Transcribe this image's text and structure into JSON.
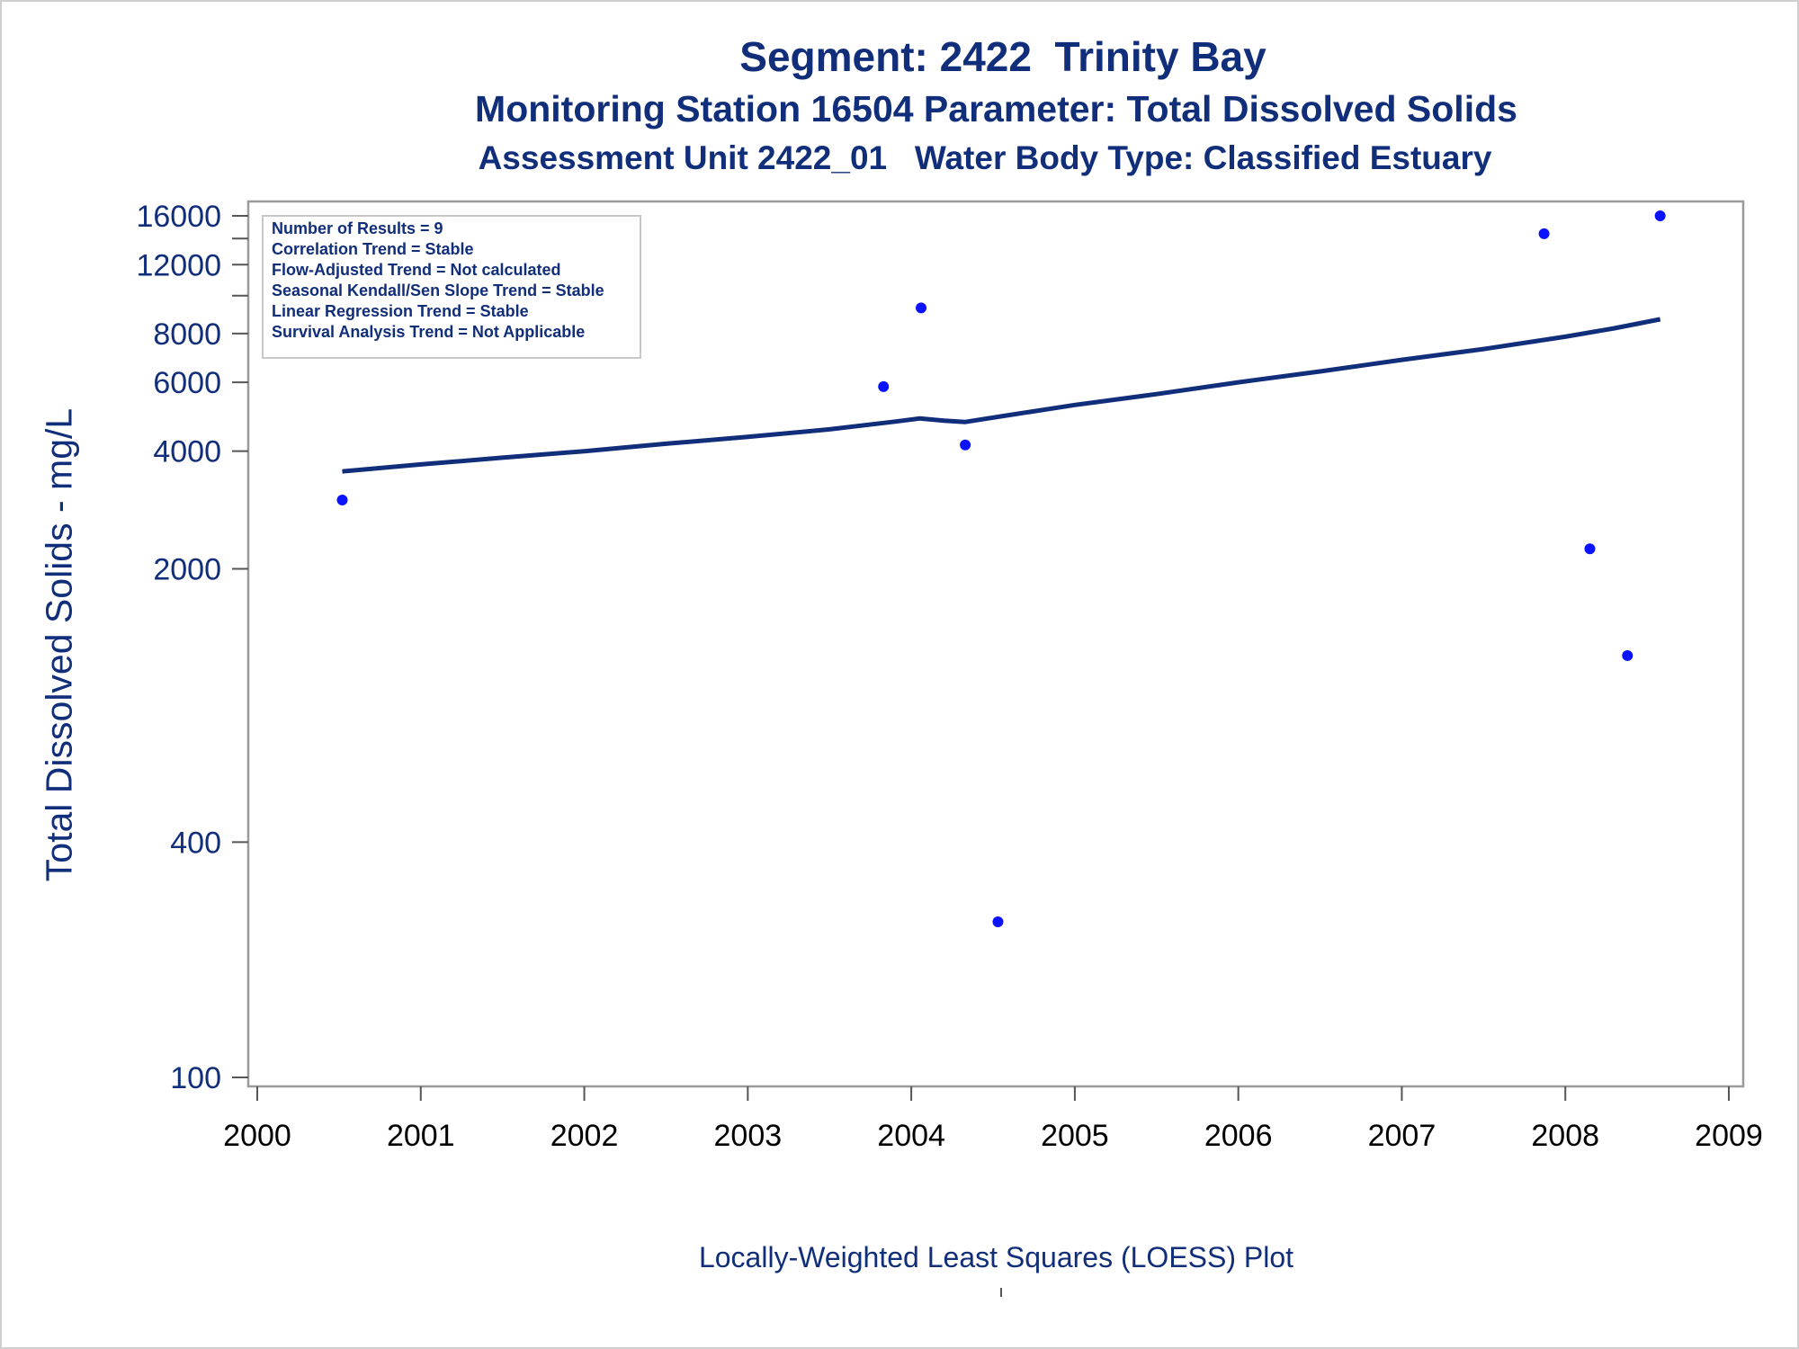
{
  "chart_data": {
    "type": "scatter",
    "title": "Segment: 2422  Trinity Bay",
    "subtitle": "Monitoring Station 16504 Parameter: Total Dissolved Solids",
    "subtitle2": "Assessment Unit 2422_01   Water Body Type: Classified Estuary",
    "xlabel": "",
    "ylabel": "Total Dissolved Solids - mg/L",
    "caption": "Locally-Weighted Least Squares (LOESS) Plot",
    "y_scale": "log",
    "xlim": [
      2000,
      2009
    ],
    "ylim": [
      100,
      17000
    ],
    "x_ticks": [
      2000,
      2001,
      2002,
      2003,
      2004,
      2005,
      2006,
      2007,
      2008,
      2009
    ],
    "x_tick_labels": [
      "2000",
      "2001",
      "2002",
      "2003",
      "2004",
      "2005",
      "2006",
      "2007",
      "2008",
      "2009"
    ],
    "y_ticks": [
      100,
      400,
      2000,
      4000,
      6000,
      8000,
      12000,
      16000
    ],
    "y_tick_labels": [
      "100",
      "400",
      "2000",
      "4000",
      "6000",
      "8000",
      "12000",
      "16000"
    ],
    "y_minor_ticks": [
      10000,
      14000
    ],
    "grid": false,
    "points": {
      "color": "#0a12ff",
      "x": [
        2000.52,
        2003.83,
        2004.06,
        2004.33,
        2004.53,
        2007.87,
        2008.15,
        2008.38,
        2008.58
      ],
      "y": [
        3000,
        5850,
        9300,
        4150,
        250,
        14400,
        2250,
        1200,
        16000
      ]
    },
    "loess": {
      "color": "#112e7a",
      "x": [
        2000.52,
        2001.0,
        2001.5,
        2002.0,
        2002.5,
        2003.0,
        2003.5,
        2003.9,
        2004.05,
        2004.2,
        2004.33,
        2004.6,
        2005.0,
        2005.5,
        2006.0,
        2006.5,
        2007.0,
        2007.5,
        2008.0,
        2008.3,
        2008.58
      ],
      "y": [
        3550,
        3700,
        3850,
        4000,
        4180,
        4350,
        4550,
        4760,
        4850,
        4790,
        4750,
        4950,
        5250,
        5600,
        6000,
        6400,
        6850,
        7300,
        7850,
        8250,
        8700
      ]
    },
    "inset": {
      "lines": [
        "Number of Results = 9",
        "Correlation Trend = Stable",
        "Flow-Adjusted Trend = Not calculated",
        "Seasonal Kendall/Sen Slope Trend = Stable",
        "Linear Regression Trend = Stable",
        "Survival Analysis Trend = Not Applicable"
      ]
    }
  }
}
